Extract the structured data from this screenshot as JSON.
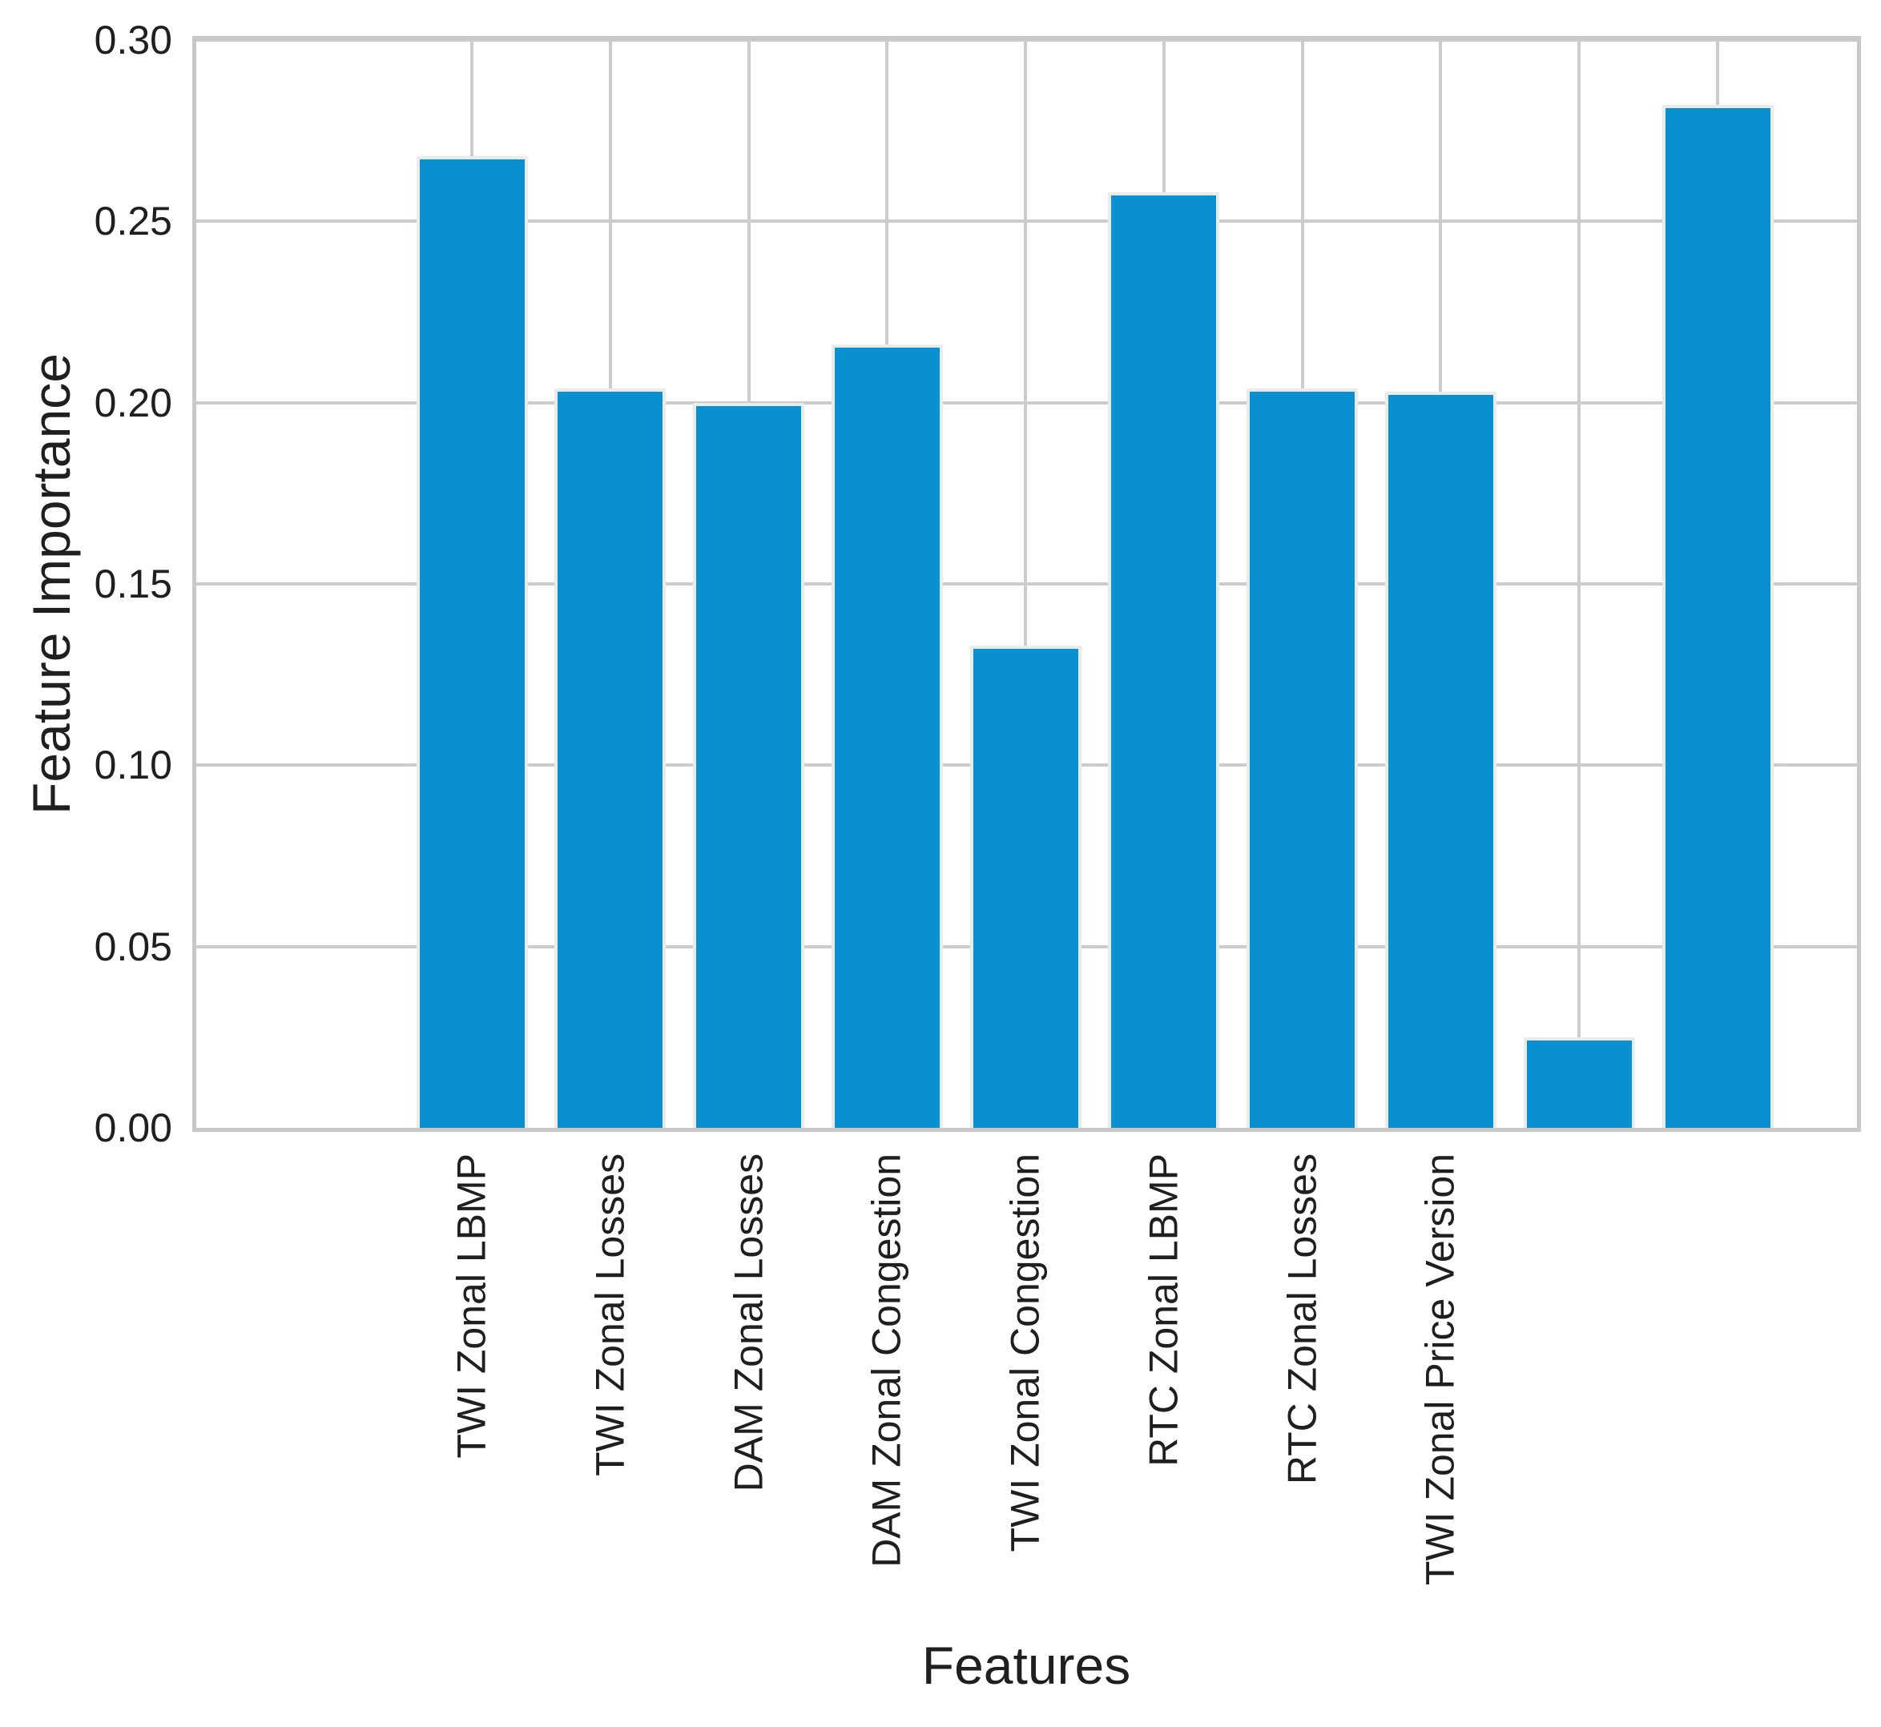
{
  "chart_data": {
    "type": "bar",
    "title": "",
    "xlabel": "Features",
    "ylabel": "Feature Importance",
    "categories": [
      "TWI Zonal LBMP",
      "TWI Zonal Losses",
      "DAM Zonal Losses",
      "DAM Zonal Congestion",
      "TWI Zonal Congestion",
      "RTC Zonal LBMP",
      "RTC Zonal Losses",
      "TWI Zonal Price Version",
      "",
      ""
    ],
    "values": [
      0.268,
      0.204,
      0.2,
      0.216,
      0.133,
      0.258,
      0.204,
      0.203,
      0.025,
      0.282
    ],
    "ylim": [
      0,
      0.3
    ],
    "yticks": [
      0.0,
      0.05,
      0.1,
      0.15,
      0.2,
      0.25,
      0.3
    ],
    "ytick_labels": [
      "0.00",
      "0.05",
      "0.10",
      "0.15",
      "0.20",
      "0.25",
      "0.30"
    ],
    "grid": true,
    "legend_position": "none",
    "colors": {
      "bar": "#0890d0",
      "bar_edge": "#ebebeb",
      "grid": "#cccccc",
      "spine": "#c8c8c8",
      "text": "#1f1f1f",
      "background": "#ffffff"
    }
  }
}
